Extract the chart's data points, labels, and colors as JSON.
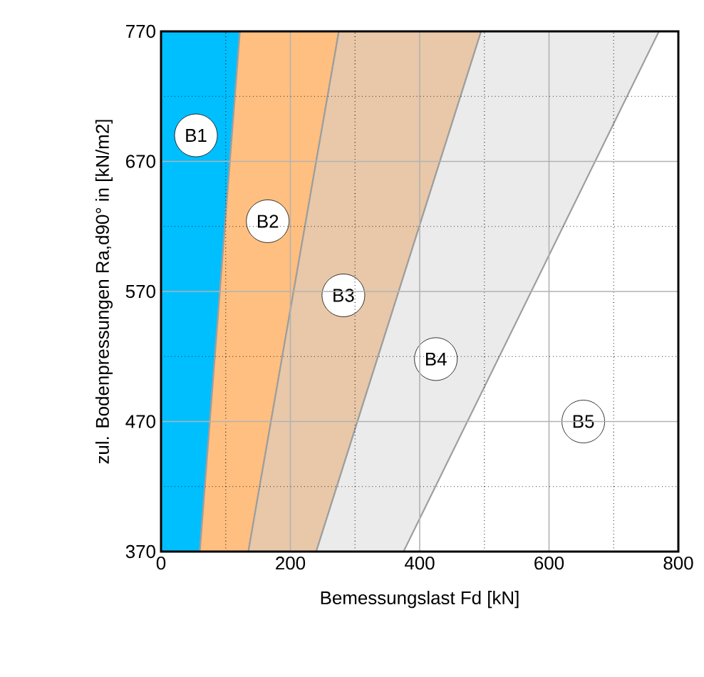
{
  "chart_data": {
    "type": "area",
    "xlabel": "Bemessungslast Fd [kN]",
    "ylabel": "zul. Bodenpressungen Ra,d90° in [kN/m2]",
    "xlim": [
      0,
      800
    ],
    "ylim": [
      370,
      770
    ],
    "xticks": [
      0,
      200,
      400,
      600,
      800
    ],
    "yticks": [
      370,
      470,
      570,
      670,
      770
    ],
    "grid": true,
    "series": [
      {
        "color": "#00bfff",
        "x": [
          0,
          60,
          122,
          0
        ],
        "values": [
          370,
          370,
          770,
          770
        ]
      },
      {
        "color": "#ffbf80",
        "x": [
          60,
          135,
          275,
          122
        ],
        "values": [
          370,
          370,
          770,
          770
        ]
      },
      {
        "color": "#e8c8a8",
        "x": [
          135,
          240,
          495,
          275
        ],
        "values": [
          370,
          370,
          770,
          770
        ]
      },
      {
        "color": "#ebebeb",
        "x": [
          240,
          375,
          770,
          495
        ],
        "values": [
          370,
          370,
          770,
          770
        ]
      }
    ],
    "annotations": [
      {
        "text": "B1",
        "x": 54,
        "y": 690
      },
      {
        "text": "B2",
        "x": 165,
        "y": 624
      },
      {
        "text": "B3",
        "x": 282,
        "y": 567
      },
      {
        "text": "B4",
        "x": 425,
        "y": 518
      },
      {
        "text": "B5",
        "x": 653,
        "y": 470
      }
    ]
  }
}
